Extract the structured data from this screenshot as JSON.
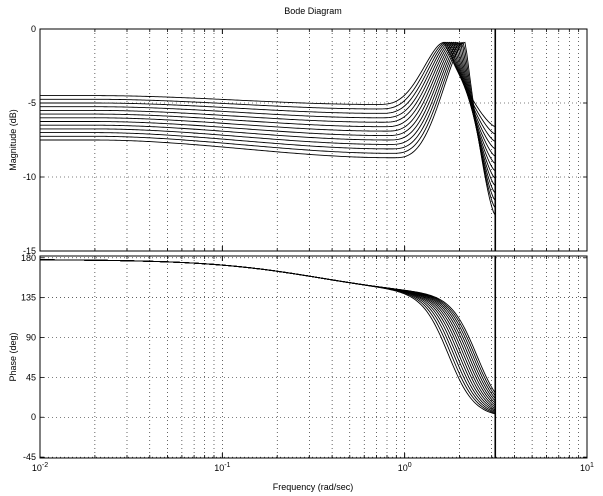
{
  "chart_data": {
    "type": "line",
    "title": "Bode Diagram",
    "xlabel": "Frequency  (rad/sec)",
    "x_scale": "log",
    "xlim": [
      0.01,
      10
    ],
    "x_ticks": [
      0.01,
      0.1,
      1,
      10
    ],
    "x_tick_labels": [
      {
        "base": "10",
        "exp": "-2"
      },
      {
        "base": "10",
        "exp": "-1"
      },
      {
        "base": "10",
        "exp": "0"
      },
      {
        "base": "10",
        "exp": "1"
      }
    ],
    "grid": true,
    "vertical_marker_x": 3.14,
    "family": {
      "count": 13,
      "low_gain_db": {
        "first": -4.5,
        "step": -0.25
      },
      "mid_dip_db": {
        "first": -5.1,
        "step": -0.3
      },
      "mid_dip_freq": {
        "first": 0.7,
        "step": 0.013
      },
      "peak_freq": {
        "first": 1.65,
        "step": 0.042
      },
      "peak_db": -0.9,
      "end_db": {
        "first": -6.6,
        "step": -0.5
      },
      "phase_low_deg": 178,
      "phase_knee_freq": {
        "first": 1.45,
        "step": 0.052
      },
      "phase_end_deg": 0
    },
    "subplots": [
      {
        "ylabel": "Magnitude (dB)",
        "ylim": [
          -15,
          0
        ],
        "yticks": [
          0,
          -5,
          -10,
          -15
        ],
        "ytick_labels": [
          "0",
          "-5",
          "-10",
          "-15"
        ]
      },
      {
        "ylabel": "Phase (deg)",
        "ylim": [
          -46,
          182
        ],
        "yticks": [
          180,
          135,
          90,
          45,
          0,
          -45
        ],
        "ytick_labels": [
          "180",
          "135",
          "90",
          "45",
          "0",
          "-45"
        ]
      }
    ]
  }
}
